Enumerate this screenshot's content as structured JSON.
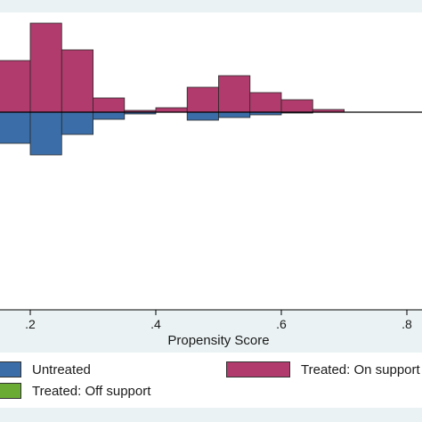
{
  "chart_data": {
    "type": "bar",
    "subtype": "mirrored-histogram",
    "xlabel": "Propensity Score",
    "x_ticks": [
      0.2,
      0.4,
      0.6,
      0.8
    ],
    "x_tick_labels": [
      ".2",
      ".4",
      ".6",
      ".8"
    ],
    "xlim": [
      0.15,
      0.82
    ],
    "bin_width": 0.05,
    "series": [
      {
        "name": "Untreated",
        "direction": "below",
        "color": "#3b6ea8",
        "bins": [
          {
            "x": 0.175,
            "value": 35
          },
          {
            "x": 0.225,
            "value": 48
          },
          {
            "x": 0.275,
            "value": 25
          },
          {
            "x": 0.325,
            "value": 8
          },
          {
            "x": 0.375,
            "value": 2
          },
          {
            "x": 0.475,
            "value": 9
          },
          {
            "x": 0.525,
            "value": 6
          },
          {
            "x": 0.575,
            "value": 3
          },
          {
            "x": 0.625,
            "value": 1
          }
        ]
      },
      {
        "name": "Treated: On support",
        "direction": "above",
        "color": "#b03b6c",
        "bins": [
          {
            "x": 0.175,
            "value": 58
          },
          {
            "x": 0.225,
            "value": 100
          },
          {
            "x": 0.275,
            "value": 70
          },
          {
            "x": 0.325,
            "value": 16
          },
          {
            "x": 0.375,
            "value": 2
          },
          {
            "x": 0.425,
            "value": 5
          },
          {
            "x": 0.475,
            "value": 28
          },
          {
            "x": 0.525,
            "value": 41
          },
          {
            "x": 0.575,
            "value": 22
          },
          {
            "x": 0.625,
            "value": 14
          },
          {
            "x": 0.675,
            "value": 3
          }
        ]
      },
      {
        "name": "Treated: Off support",
        "direction": "above",
        "color": "#6aab34",
        "bins": []
      }
    ]
  },
  "legend": {
    "items": [
      {
        "label": "Untreated",
        "color": "#3b6ea8"
      },
      {
        "label": "Treated: On support",
        "color": "#b03b6c"
      },
      {
        "label": "Treated: Off support",
        "color": "#6aab34"
      }
    ]
  }
}
